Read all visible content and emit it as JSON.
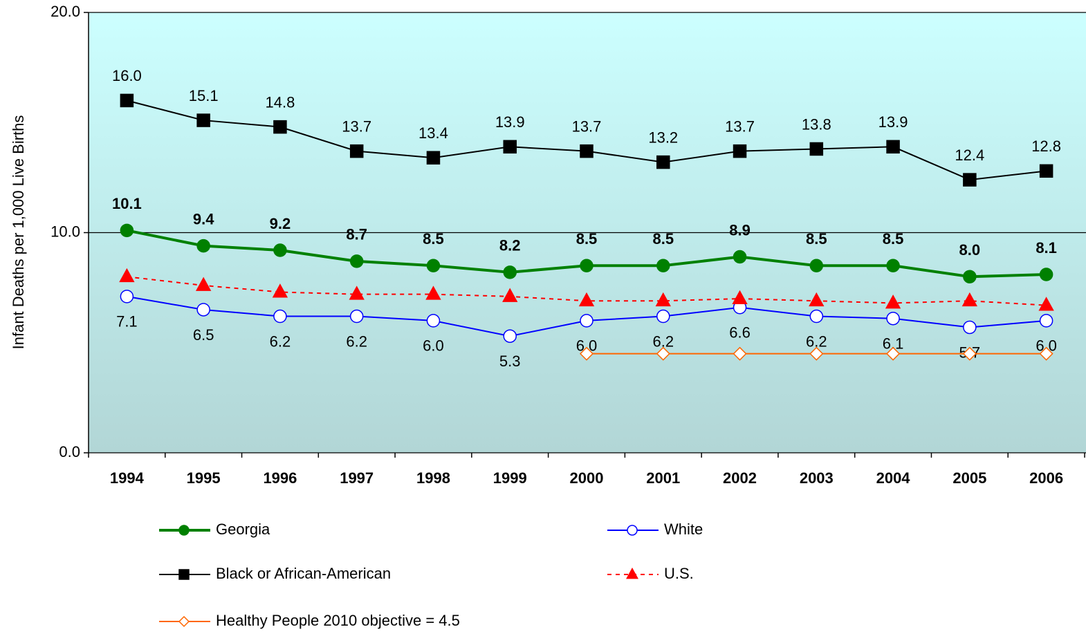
{
  "chart_data": {
    "type": "line",
    "y_label": "Infant Deaths per 1,000 Live Births",
    "categories": [
      "1994",
      "1995",
      "1996",
      "1997",
      "1998",
      "1999",
      "2000",
      "2001",
      "2002",
      "2003",
      "2004",
      "2005",
      "2006"
    ],
    "ylim": [
      0,
      20
    ],
    "yticks": [
      {
        "value": 0,
        "label": "0.0"
      },
      {
        "value": 10,
        "label": "10.0"
      },
      {
        "value": 20,
        "label": "20.0"
      }
    ],
    "grid": true,
    "series": [
      {
        "name": "Georgia",
        "color": "#008000",
        "marker": "circle",
        "marker_fill": "#008000",
        "values": [
          10.1,
          9.4,
          9.2,
          8.7,
          8.5,
          8.2,
          8.5,
          8.5,
          8.9,
          8.5,
          8.5,
          8.0,
          8.1
        ],
        "value_labels": [
          "10.1",
          "9.4",
          "9.2",
          "8.7",
          "8.5",
          "8.2",
          "8.5",
          "8.5",
          "8.9",
          "8.5",
          "8.5",
          "8.0",
          "8.1"
        ]
      },
      {
        "name": "White",
        "color": "#0000ff",
        "marker": "circle",
        "marker_fill": "#ffffff",
        "values": [
          7.1,
          6.5,
          6.2,
          6.2,
          6.0,
          5.3,
          6.0,
          6.2,
          6.6,
          6.2,
          6.1,
          5.7,
          6.0
        ],
        "value_labels": [
          "7.1",
          "6.5",
          "6.2",
          "6.2",
          "6.0",
          "5.3",
          "6.0",
          "6.2",
          "6.6",
          "6.2",
          "6.1",
          "5.7",
          "6.0"
        ]
      },
      {
        "name": "Black or African-American",
        "color": "#000000",
        "marker": "square",
        "marker_fill": "#000000",
        "values": [
          16.0,
          15.1,
          14.8,
          13.7,
          13.4,
          13.9,
          13.7,
          13.2,
          13.7,
          13.8,
          13.9,
          12.4,
          12.8
        ],
        "value_labels": [
          "16.0",
          "15.1",
          "14.8",
          "13.7",
          "13.4",
          "13.9",
          "13.7",
          "13.2",
          "13.7",
          "13.8",
          "13.9",
          "12.4",
          "12.8"
        ]
      },
      {
        "name": "U.S.",
        "color": "#ff0000",
        "marker": "triangle",
        "marker_fill": "#ff0000",
        "dashed": true,
        "values": [
          8.0,
          7.6,
          7.3,
          7.2,
          7.2,
          7.1,
          6.9,
          6.9,
          7.0,
          6.9,
          6.8,
          6.9,
          6.7
        ]
      },
      {
        "name": "Healthy People 2010 objective = 4.5",
        "color": "#ff6600",
        "marker": "diamond",
        "marker_fill": "#ffffff",
        "values": [
          null,
          null,
          null,
          null,
          null,
          null,
          4.5,
          4.5,
          4.5,
          4.5,
          4.5,
          4.5,
          4.5
        ]
      }
    ]
  }
}
